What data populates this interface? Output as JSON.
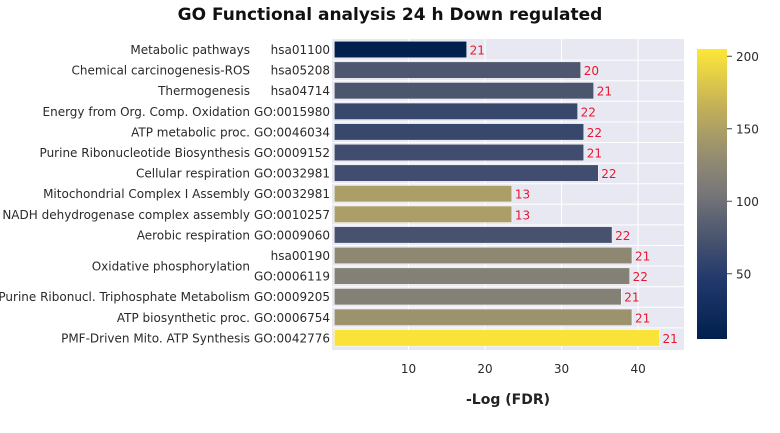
{
  "chart_data": {
    "type": "bar",
    "orientation": "horizontal",
    "title": "GO Functional analysis 24 h Down regulated",
    "xlabel": "-Log (FDR)",
    "ylabel": "",
    "xlim": [
      0,
      46
    ],
    "xticks": [
      10,
      20,
      30,
      40
    ],
    "grid": "on",
    "rows": [
      {
        "term": "Metabolic pathways",
        "id": "hsa01100",
        "value": 17.6,
        "count": 21,
        "color_value": 5
      },
      {
        "term": "Chemical carcinogenesis-ROS",
        "id": "hsa05208",
        "value": 32.5,
        "count": 20,
        "color_value": 78
      },
      {
        "term": "Thermogenesis",
        "id": "hsa04714",
        "value": 34.2,
        "count": 21,
        "color_value": 76
      },
      {
        "term": "Energy from Org. Comp. Oxidation",
        "id": "GO:0015980",
        "value": 32.1,
        "count": 22,
        "color_value": 62
      },
      {
        "term": "ATP metabolic proc.",
        "id": "GO:0046034",
        "value": 32.9,
        "count": 22,
        "color_value": 62
      },
      {
        "term": "Purine Ribonucleotide Biosynthesis",
        "id": "GO:0009152",
        "value": 32.9,
        "count": 21,
        "color_value": 68
      },
      {
        "term": "Cellular respiration",
        "id": "GO:0032981",
        "value": 34.8,
        "count": 22,
        "color_value": 68
      },
      {
        "term": "Mitochondrial Complex I Assembly",
        "id": "GO:0032981",
        "value": 23.5,
        "count": 13,
        "color_value": 148
      },
      {
        "term": "NADH dehydrogenase complex assembly",
        "id": "GO:0010257",
        "value": 23.5,
        "count": 13,
        "color_value": 148
      },
      {
        "term": "Aerobic respiration",
        "id": "GO:0009060",
        "value": 36.6,
        "count": 22,
        "color_value": 73
      },
      {
        "term": "",
        "id": "hsa00190",
        "value": 39.2,
        "count": 21,
        "color_value": 126
      },
      {
        "term": "",
        "id": "GO:0006119",
        "value": 38.9,
        "count": 22,
        "color_value": 116
      },
      {
        "term": "Purine Ribonucl. Triphosphate Metabolism",
        "id": "GO:0009205",
        "value": 37.8,
        "count": 21,
        "color_value": 116
      },
      {
        "term": "ATP biosynthetic proc.",
        "id": "GO:0006754",
        "value": 39.2,
        "count": 21,
        "color_value": 138
      },
      {
        "term": "PMF-Driven Mito. ATP Synthesis",
        "id": "GO:0042776",
        "value": 42.8,
        "count": 21,
        "color_value": 202
      }
    ],
    "group_labels": [
      {
        "label": "Oxidative phosphorylation",
        "first_row": 10,
        "last_row": 11
      }
    ],
    "colorbar": {
      "colorscale": "cividis",
      "range": [
        5,
        205
      ],
      "ticks": [
        50,
        100,
        150,
        200
      ]
    },
    "label_color": "#e8172f"
  }
}
